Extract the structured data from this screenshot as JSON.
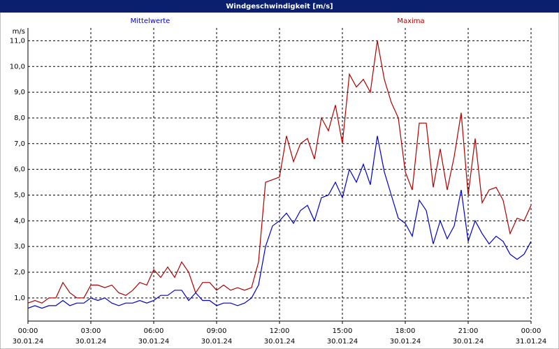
{
  "chart_data": {
    "type": "line",
    "title": "Windgeschwindigkeit [m/s]",
    "y_unit": "m/s",
    "x": [
      0,
      20,
      40,
      60,
      80,
      100,
      120,
      140,
      160,
      180,
      200,
      220,
      240,
      260,
      280,
      300,
      320,
      340,
      360,
      380,
      400,
      420,
      440,
      460,
      480,
      500,
      520,
      540,
      560,
      580,
      600,
      620,
      640,
      660,
      680,
      700,
      720,
      740,
      760,
      780,
      800,
      820,
      840,
      860,
      880,
      900,
      920,
      940,
      960,
      980,
      1000,
      1020,
      1040,
      1060,
      1080,
      1100,
      1120,
      1140,
      1160,
      1180,
      1200,
      1220,
      1240,
      1260,
      1280,
      1300,
      1320,
      1340,
      1360,
      1380,
      1400,
      1420,
      1440
    ],
    "xlim": [
      0,
      1440
    ],
    "xticks": [
      {
        "value": 0,
        "label": "00:00"
      },
      {
        "value": 180,
        "label": "03:00"
      },
      {
        "value": 360,
        "label": "06:00"
      },
      {
        "value": 540,
        "label": "09:00"
      },
      {
        "value": 720,
        "label": "12:00"
      },
      {
        "value": 900,
        "label": "15:00"
      },
      {
        "value": 1080,
        "label": "18:00"
      },
      {
        "value": 1260,
        "label": "21:00"
      },
      {
        "value": 1440,
        "label": "00:00"
      }
    ],
    "xtick_dates": [
      "30.01.24",
      "30.01.24",
      "30.01.24",
      "30.01.24",
      "30.01.24",
      "30.01.24",
      "30.01.24",
      "30.01.24",
      "31.01.24"
    ],
    "ylim": [
      0.1,
      11.5
    ],
    "yticks": [
      {
        "value": 1,
        "label": "1,0"
      },
      {
        "value": 2,
        "label": "2,0"
      },
      {
        "value": 3,
        "label": "3,0"
      },
      {
        "value": 4,
        "label": "4,0"
      },
      {
        "value": 5,
        "label": "5,0"
      },
      {
        "value": 6,
        "label": "6,0"
      },
      {
        "value": 7,
        "label": "7,0"
      },
      {
        "value": 8,
        "label": "8,0"
      },
      {
        "value": 9,
        "label": "9,0"
      },
      {
        "value": 10,
        "label": "10,0"
      },
      {
        "value": 11,
        "label": "11,0"
      }
    ],
    "grid": true,
    "series": [
      {
        "name": "Mittelwerte",
        "color": "#0000cc",
        "values": [
          0.6,
          0.7,
          0.6,
          0.7,
          0.7,
          0.9,
          0.7,
          0.8,
          0.8,
          1.0,
          0.9,
          1.0,
          0.8,
          0.7,
          0.8,
          0.8,
          0.9,
          0.8,
          0.9,
          1.1,
          1.1,
          1.3,
          1.3,
          0.9,
          1.2,
          0.9,
          0.9,
          0.7,
          0.8,
          0.8,
          0.7,
          0.8,
          1.0,
          1.5,
          3.0,
          3.8,
          4.0,
          4.3,
          3.9,
          4.4,
          4.6,
          4.0,
          4.9,
          5.0,
          5.5,
          4.9,
          6.0,
          5.5,
          6.2,
          5.4,
          7.3,
          5.9,
          5.0,
          4.1,
          3.9,
          3.4,
          4.8,
          4.4,
          3.1,
          4.0,
          3.3,
          3.8,
          5.2,
          3.2,
          4.0,
          3.5,
          3.1,
          3.4,
          3.2,
          2.7,
          2.5,
          2.7,
          3.2
        ]
      },
      {
        "name": "Maxima",
        "color": "#b00000",
        "values": [
          0.8,
          0.9,
          0.8,
          1.0,
          1.0,
          1.6,
          1.2,
          1.0,
          1.0,
          1.5,
          1.5,
          1.4,
          1.5,
          1.2,
          1.1,
          1.3,
          1.6,
          1.5,
          2.1,
          1.8,
          2.2,
          1.8,
          2.4,
          2.0,
          1.2,
          1.6,
          1.6,
          1.3,
          1.5,
          1.3,
          1.4,
          1.3,
          1.4,
          2.4,
          5.5,
          5.6,
          5.7,
          7.3,
          6.3,
          7.0,
          7.2,
          6.4,
          8.0,
          7.5,
          8.5,
          7.0,
          9.7,
          9.2,
          9.5,
          9.0,
          11.0,
          9.5,
          8.6,
          8.0,
          5.9,
          5.2,
          7.8,
          7.8,
          5.3,
          6.8,
          5.2,
          6.5,
          8.2,
          5.0,
          7.2,
          4.7,
          5.2,
          5.3,
          4.8,
          3.5,
          4.1,
          4.0,
          4.6
        ]
      }
    ]
  }
}
